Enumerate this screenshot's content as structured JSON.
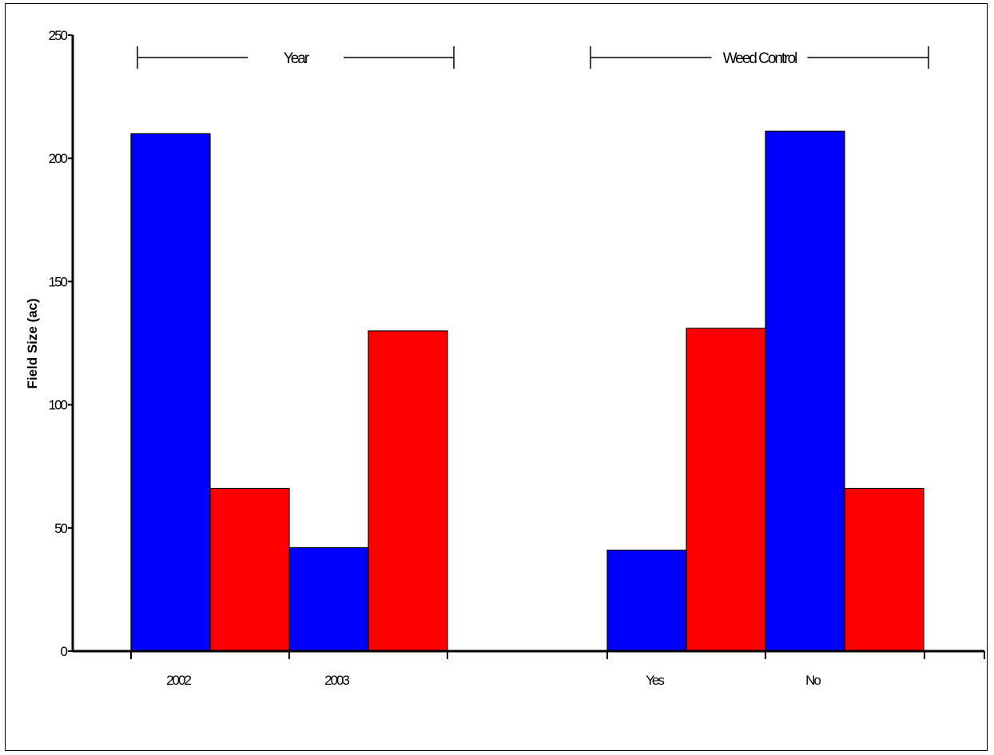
{
  "chart_data": {
    "type": "bar",
    "ylabel": "Field Size (ac)",
    "ylim": [
      0,
      250
    ],
    "yticks": [
      0,
      50,
      100,
      150,
      200,
      250
    ],
    "groups": [
      {
        "label": "Year",
        "categories": [
          {
            "label": "2002",
            "values": [
              210,
              66
            ]
          },
          {
            "label": "2003",
            "values": [
              42,
              130
            ]
          }
        ]
      },
      {
        "label": "Weed Control",
        "categories": [
          {
            "label": "Yes",
            "values": [
              41,
              131
            ]
          },
          {
            "label": "No",
            "values": [
              211,
              66
            ]
          }
        ]
      }
    ],
    "series_colors": [
      "#0000ff",
      "#ff0000"
    ],
    "grid": false,
    "legend": "none"
  }
}
